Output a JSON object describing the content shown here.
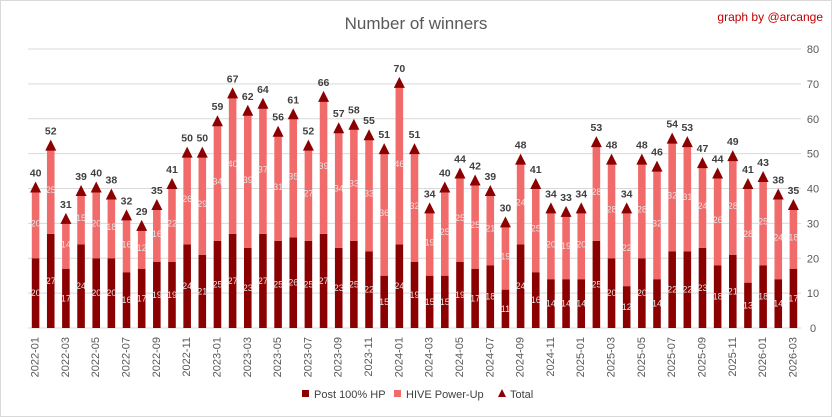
{
  "chart_data": {
    "type": "bar",
    "stacked": true,
    "title": "Number of winners",
    "credit": "graph by @arcange",
    "categories": [
      "2022-01",
      "2022-02",
      "2022-03",
      "2022-04",
      "2022-05",
      "2022-06",
      "2022-07",
      "2022-08",
      "2022-09",
      "2022-10",
      "2022-11",
      "2022-12",
      "2023-01",
      "2023-02",
      "2023-03",
      "2023-04",
      "2023-05",
      "2023-06",
      "2023-07",
      "2023-08",
      "2023-09",
      "2023-10",
      "2023-11",
      "2023-12",
      "2024-01",
      "2024-02",
      "2024-03",
      "2024-04",
      "2024-05",
      "2024-06",
      "2024-07",
      "2024-08",
      "2024-09",
      "2024-10",
      "2024-11",
      "2024-12",
      "2025-01",
      "2025-02",
      "2025-03",
      "2025-04",
      "2025-05",
      "2025-06",
      "2025-07",
      "2025-08",
      "2025-09",
      "2025-10",
      "2025-11",
      "2025-12",
      "2026-01",
      "2026-02",
      "2026-03"
    ],
    "x_tick_labels": [
      "2022-01",
      "2022-03",
      "2022-05",
      "2022-07",
      "2022-09",
      "2022-11",
      "2023-01",
      "2023-03",
      "2023-05",
      "2023-07",
      "2023-09",
      "2023-11",
      "2024-01",
      "2024-03",
      "2024-05",
      "2024-07",
      "2024-09",
      "2024-11",
      "2025-01",
      "2025-03",
      "2025-05",
      "2025-07",
      "2025-09",
      "2025-11",
      "2026-01",
      "2026-03"
    ],
    "series": [
      {
        "name": "Post 100% HP",
        "color": "#8b0000",
        "values": [
          20,
          27,
          17,
          24,
          20,
          20,
          16,
          17,
          19,
          19,
          24,
          21,
          25,
          27,
          23,
          27,
          25,
          26,
          25,
          27,
          23,
          25,
          22,
          15,
          24,
          19,
          15,
          15,
          19,
          17,
          18,
          11,
          24,
          16,
          14,
          14,
          14,
          25,
          20,
          12,
          20,
          14,
          22,
          22,
          23,
          18,
          21,
          13,
          18,
          14,
          17
        ]
      },
      {
        "name": "HIVE Power-Up",
        "color": "#f26b6b",
        "values": [
          20,
          25,
          14,
          15,
          20,
          18,
          16,
          12,
          16,
          22,
          26,
          29,
          34,
          40,
          39,
          37,
          31,
          35,
          27,
          39,
          34,
          33,
          33,
          36,
          46,
          32,
          19,
          25,
          25,
          25,
          21,
          19,
          24,
          25,
          20,
          19,
          20,
          28,
          28,
          22,
          28,
          32,
          32,
          31,
          24,
          26,
          28,
          28,
          25,
          24,
          18
        ]
      },
      {
        "name": "Total",
        "color": "#8b0000",
        "marker": "triangle",
        "values": [
          40,
          52,
          31,
          39,
          40,
          38,
          32,
          29,
          35,
          41,
          50,
          50,
          59,
          67,
          62,
          64,
          56,
          61,
          52,
          66,
          57,
          58,
          55,
          51,
          70,
          51,
          34,
          40,
          44,
          42,
          39,
          30,
          48,
          41,
          34,
          33,
          34,
          53,
          48,
          34,
          48,
          46,
          54,
          53,
          47,
          44,
          49,
          41,
          43,
          38,
          35
        ]
      }
    ],
    "y_axis": {
      "position": "right",
      "min": 0,
      "max": 80,
      "step": 10
    },
    "grid": true,
    "legend": {
      "position": "bottom",
      "entries": [
        "Post 100% HP",
        "HIVE Power-Up",
        "Total"
      ]
    }
  }
}
